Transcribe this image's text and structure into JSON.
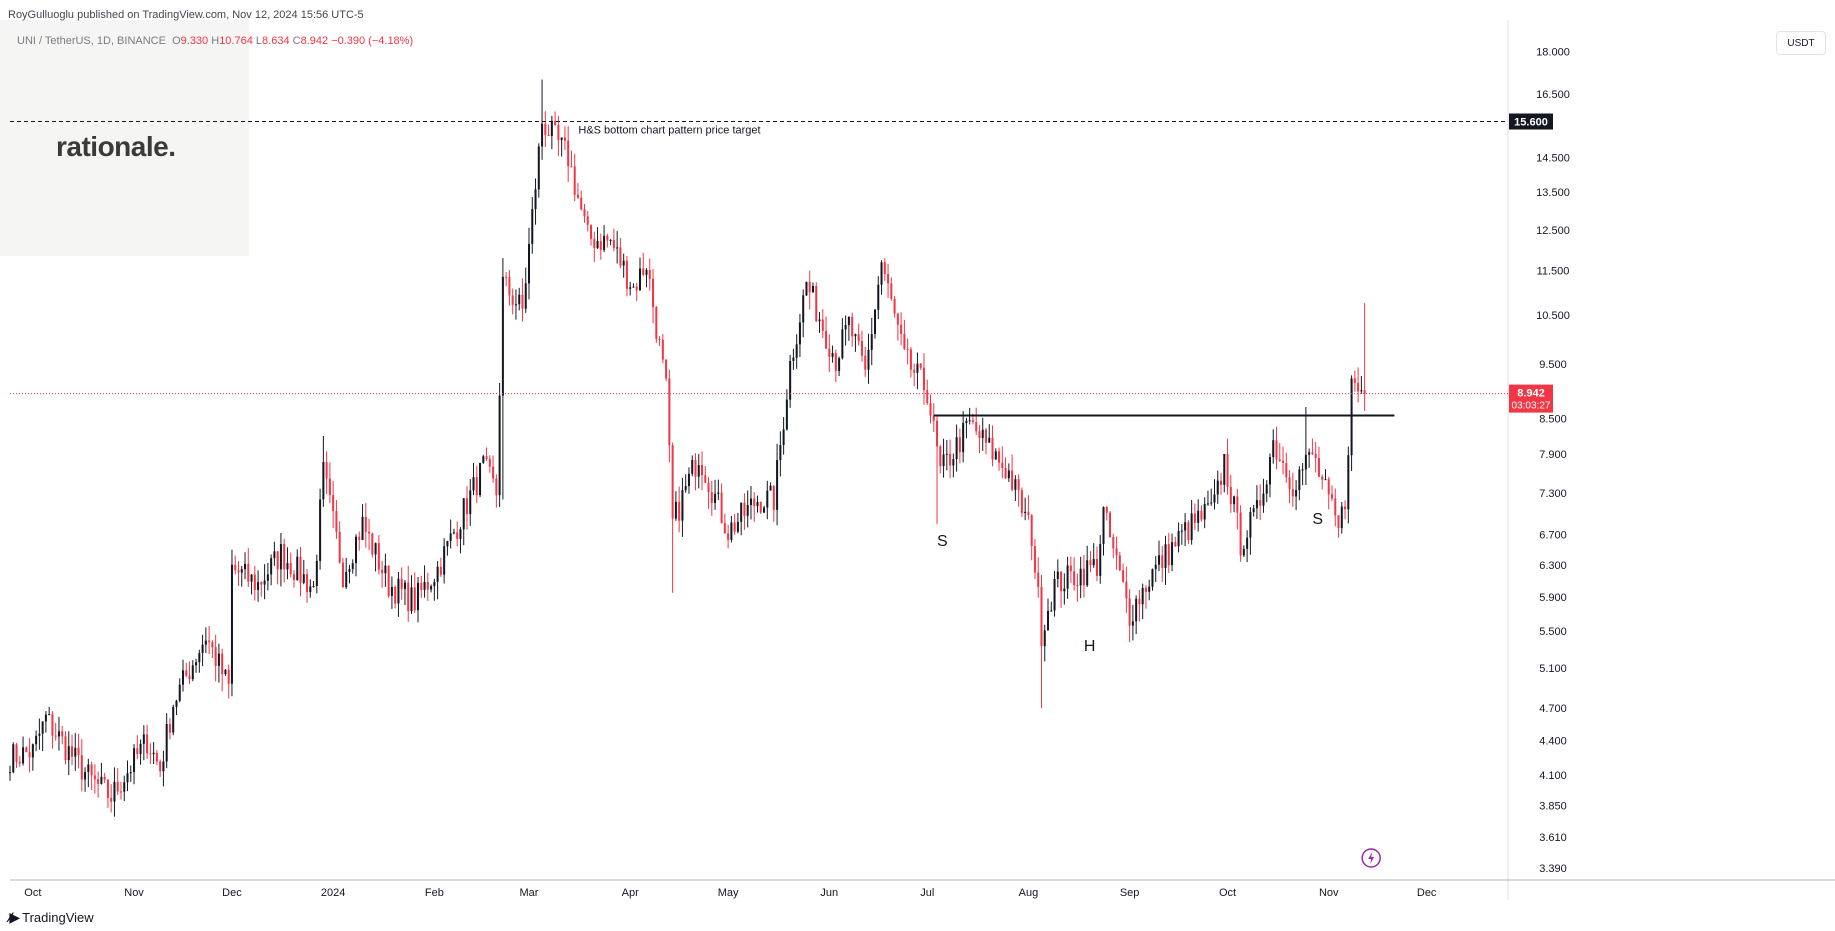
{
  "header": {
    "publisher": "RoyGulluoglu published on TradingView.com, Nov 12, 2024 15:56 UTC-5",
    "symbol": "UNI / TetherUS, 1D, BINANCE",
    "open_label": "O",
    "open": "9.330",
    "high_label": "H",
    "high": "10.764",
    "low_label": "L",
    "low": "8.634",
    "close_label": "C",
    "close": "8.942",
    "change": "−0.390 (−4.18%)"
  },
  "watermark": {
    "text": "rationale."
  },
  "price_scale": {
    "unit": "USDT"
  },
  "footer": {
    "brand": "TradingView",
    "brand_icon": "tradingview-logo-icon"
  },
  "colors": {
    "up": "#131722",
    "down": "#f23645",
    "price_line": "#f23645",
    "background": "#ffffff"
  },
  "chart_data": {
    "type": "candlestick",
    "title": "",
    "y_ticks": [
      "18.000",
      "16.500",
      "15.600",
      "14.500",
      "13.500",
      "12.500",
      "11.500",
      "10.500",
      "9.500",
      "8.942",
      "8.500",
      "7.900",
      "7.300",
      "6.700",
      "6.300",
      "5.900",
      "5.500",
      "5.100",
      "4.700",
      "4.400",
      "4.100",
      "3.850",
      "3.610",
      "3.390"
    ],
    "y_tick_values": [
      18.0,
      16.5,
      15.6,
      14.5,
      13.5,
      12.5,
      11.5,
      10.5,
      9.5,
      8.942,
      8.5,
      7.9,
      7.3,
      6.7,
      6.3,
      5.9,
      5.5,
      5.1,
      4.7,
      4.4,
      4.1,
      3.85,
      3.61,
      3.39
    ],
    "y_range": [
      3.32,
      19.2
    ],
    "y_scale": "log",
    "x_ticks": [
      "Oct",
      "Nov",
      "Dec",
      "2024",
      "Feb",
      "Mar",
      "Apr",
      "May",
      "Jun",
      "Jul",
      "Aug",
      "Sep",
      "Oct",
      "Nov",
      "Dec"
    ],
    "x_start_date": "2023-09-24",
    "x_tick_dates": [
      "2023-10-01",
      "2023-11-01",
      "2023-12-01",
      "2024-01-01",
      "2024-02-01",
      "2024-03-01",
      "2024-04-01",
      "2024-05-01",
      "2024-06-01",
      "2024-07-01",
      "2024-08-01",
      "2024-09-01",
      "2024-10-01",
      "2024-11-01",
      "2024-12-01"
    ],
    "x_end_date": "2024-12-25",
    "last_price": {
      "value": "8.942",
      "countdown": "03:03:27"
    },
    "target_line": {
      "value": "15.600",
      "label": "H&S bottom chart pattern price target"
    },
    "neckline": {
      "value": 8.55,
      "from": "2024-07-03",
      "to": "2024-11-15"
    },
    "pattern_labels": [
      {
        "text": "S",
        "date": "2024-07-04",
        "price": 6.55
      },
      {
        "text": "H",
        "date": "2024-08-18",
        "price": 5.28
      },
      {
        "text": "S",
        "date": "2024-10-27",
        "price": 6.85
      }
    ],
    "anchors": [
      [
        "2023-09-24",
        4.25
      ],
      [
        "2023-10-01",
        4.3
      ],
      [
        "2023-10-05",
        4.6
      ],
      [
        "2023-10-12",
        4.3
      ],
      [
        "2023-10-19",
        4.05
      ],
      [
        "2023-10-25",
        3.92
      ],
      [
        "2023-11-05",
        4.4
      ],
      [
        "2023-11-09",
        4.15
      ],
      [
        "2023-11-13",
        4.75
      ],
      [
        "2023-11-23",
        5.45
      ],
      [
        "2023-11-30",
        4.9
      ],
      [
        "2023-12-01",
        6.25
      ],
      [
        "2023-12-09",
        6.05
      ],
      [
        "2023-12-16",
        6.45
      ],
      [
        "2023-12-26",
        6.0
      ],
      [
        "2023-12-29",
        7.6
      ],
      [
        "2024-01-04",
        6.2
      ],
      [
        "2024-01-10",
        6.85
      ],
      [
        "2024-01-18",
        6.05
      ],
      [
        "2024-01-26",
        5.85
      ],
      [
        "2024-02-02",
        6.25
      ],
      [
        "2024-02-16",
        7.7
      ],
      [
        "2024-02-20",
        7.3
      ],
      [
        "2024-02-22",
        11.2
      ],
      [
        "2024-02-28",
        10.6
      ],
      [
        "2024-03-05",
        15.6
      ],
      [
        "2024-03-13",
        14.5
      ],
      [
        "2024-03-19",
        12.3
      ],
      [
        "2024-03-26",
        12.2
      ],
      [
        "2024-04-02",
        11.1
      ],
      [
        "2024-04-06",
        11.7
      ],
      [
        "2024-04-12",
        9.0
      ],
      [
        "2024-04-14",
        6.85
      ],
      [
        "2024-04-22",
        7.9
      ],
      [
        "2024-05-01",
        6.75
      ],
      [
        "2024-05-10",
        7.2
      ],
      [
        "2024-05-15",
        7.2
      ],
      [
        "2024-05-20",
        9.5
      ],
      [
        "2024-05-25",
        11.2
      ],
      [
        "2024-06-03",
        9.6
      ],
      [
        "2024-06-07",
        10.3
      ],
      [
        "2024-06-12",
        9.3
      ],
      [
        "2024-06-17",
        11.7
      ],
      [
        "2024-06-24",
        9.6
      ],
      [
        "2024-07-01",
        9.0
      ],
      [
        "2024-07-05",
        7.6
      ],
      [
        "2024-07-14",
        8.4
      ],
      [
        "2024-07-26",
        7.6
      ],
      [
        "2024-08-02",
        6.7
      ],
      [
        "2024-08-05",
        5.5
      ],
      [
        "2024-08-09",
        6.05
      ],
      [
        "2024-08-22",
        6.3
      ],
      [
        "2024-08-24",
        7.0
      ],
      [
        "2024-09-01",
        5.7
      ],
      [
        "2024-09-08",
        6.2
      ],
      [
        "2024-09-18",
        6.75
      ],
      [
        "2024-09-27",
        7.1
      ],
      [
        "2024-09-30",
        7.8
      ],
      [
        "2024-10-05",
        6.6
      ],
      [
        "2024-10-10",
        7.0
      ],
      [
        "2024-10-15",
        8.1
      ],
      [
        "2024-10-21",
        7.45
      ],
      [
        "2024-10-27",
        7.9
      ],
      [
        "2024-11-04",
        6.75
      ],
      [
        "2024-11-06",
        7.2
      ],
      [
        "2024-11-08",
        9.1
      ],
      [
        "2024-11-12",
        8.94
      ]
    ],
    "wick_extremes": [
      [
        "2024-03-05",
        17.0,
        15.2
      ],
      [
        "2023-12-29",
        8.2,
        7.3
      ],
      [
        "2024-02-22",
        11.8,
        7.2
      ],
      [
        "2024-04-14",
        7.2,
        5.95
      ],
      [
        "2024-08-05",
        6.0,
        4.7
      ],
      [
        "2024-07-04",
        7.9,
        6.85
      ],
      [
        "2024-10-25",
        8.7,
        7.6
      ],
      [
        "2024-11-12",
        10.76,
        8.63
      ]
    ]
  }
}
